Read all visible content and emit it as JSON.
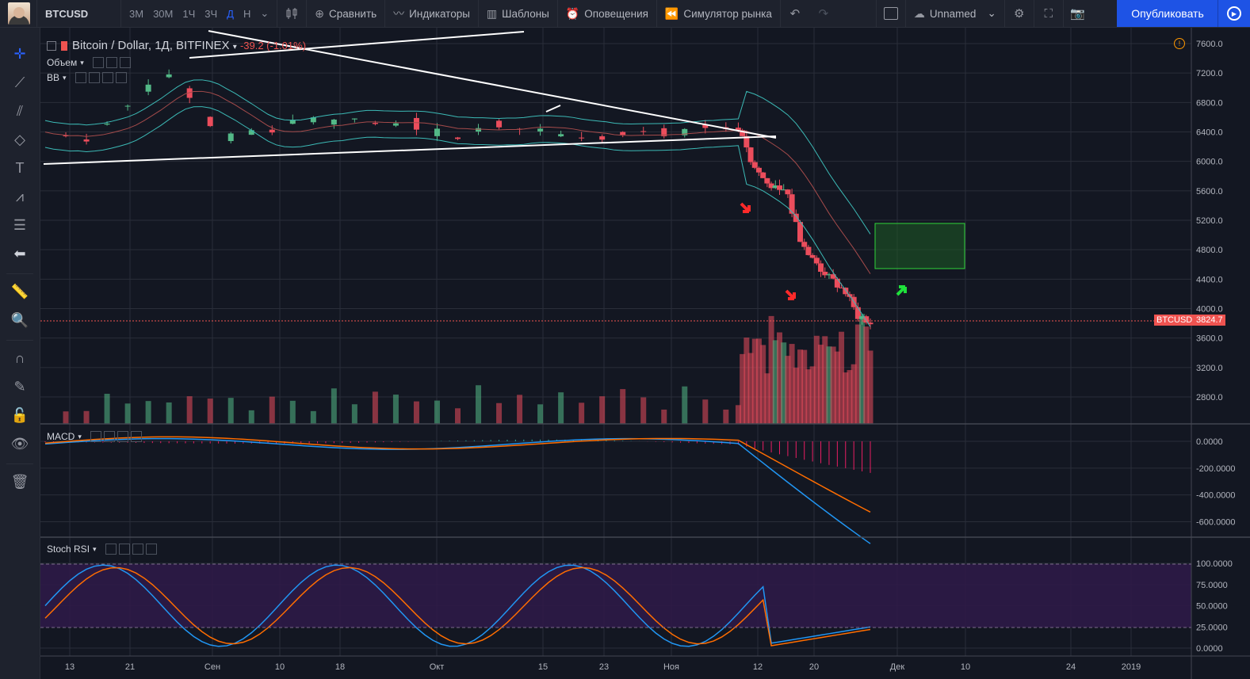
{
  "toolbar": {
    "symbol": "BTCUSD",
    "timeframes": [
      "3М",
      "30М",
      "1Ч",
      "3Ч",
      "Д",
      "Н"
    ],
    "active_timeframe": "Д",
    "compare_label": "Сравнить",
    "indicators_label": "Индикаторы",
    "templates_label": "Шаблоны",
    "alerts_label": "Оповещения",
    "replay_label": "Симулятор рынка",
    "layout_name": "Unnamed",
    "publish_label": "Опубликовать"
  },
  "legend": {
    "title": "Bitcoin / Dollar, 1Д, BITFINEX",
    "change": "-39.2 (-1.01%)",
    "volume_label": "Объем",
    "bb_label": "BB",
    "macd_label": "MACD",
    "stoch_label": "Stoch RSI"
  },
  "colors": {
    "up": "#53b987",
    "down": "#eb4d5c",
    "bb": "#3cbab6",
    "macd": "#2196f3",
    "signal": "#ff6d00",
    "rsi_band": "#2e1a47",
    "accent": "#2962ff"
  },
  "price_axis": {
    "ticks": [
      "7600.0",
      "7200.0",
      "6800.0",
      "6400.0",
      "6000.0",
      "5600.0",
      "5200.0",
      "4800.0",
      "4400.0",
      "4000.0",
      "3600.0",
      "3200.0",
      "2800.0"
    ],
    "current_label": "BTCUSD",
    "current_price": "3824.7"
  },
  "macd_axis": {
    "ticks": [
      "0.0000",
      "-200.0000",
      "-400.0000",
      "-600.0000"
    ]
  },
  "stoch_axis": {
    "ticks": [
      "100.0000",
      "75.0000",
      "50.0000",
      "25.0000",
      "0.0000"
    ]
  },
  "time_axis": {
    "ticks": [
      "13",
      "21",
      "Сен",
      "10",
      "18",
      "Окт",
      "15",
      "23",
      "Ноя",
      "12",
      "20",
      "Дек",
      "10",
      "24",
      "2019"
    ]
  }
}
